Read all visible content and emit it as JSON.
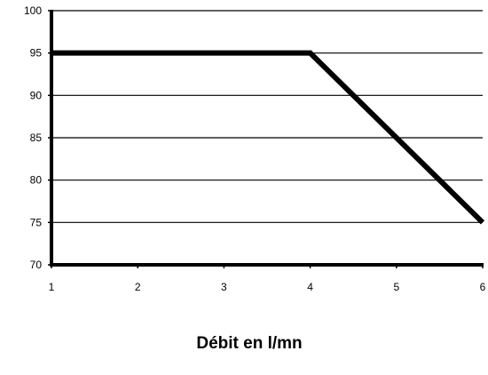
{
  "chart_data": {
    "type": "line",
    "title": "",
    "xlabel": "Débit en l/mn",
    "ylabel": "",
    "x": [
      1,
      2,
      3,
      4,
      5,
      6
    ],
    "xlim": [
      1,
      6
    ],
    "ylim": [
      70,
      100
    ],
    "y_ticks": [
      70,
      75,
      80,
      85,
      90,
      95,
      100
    ],
    "x_ticks": [
      1,
      2,
      3,
      4,
      5,
      6
    ],
    "grid": "horizontal",
    "legend": "none",
    "series": [
      {
        "points": [
          [
            1,
            95
          ],
          [
            4,
            95
          ],
          [
            6,
            75
          ]
        ],
        "color": "#000000"
      }
    ]
  }
}
